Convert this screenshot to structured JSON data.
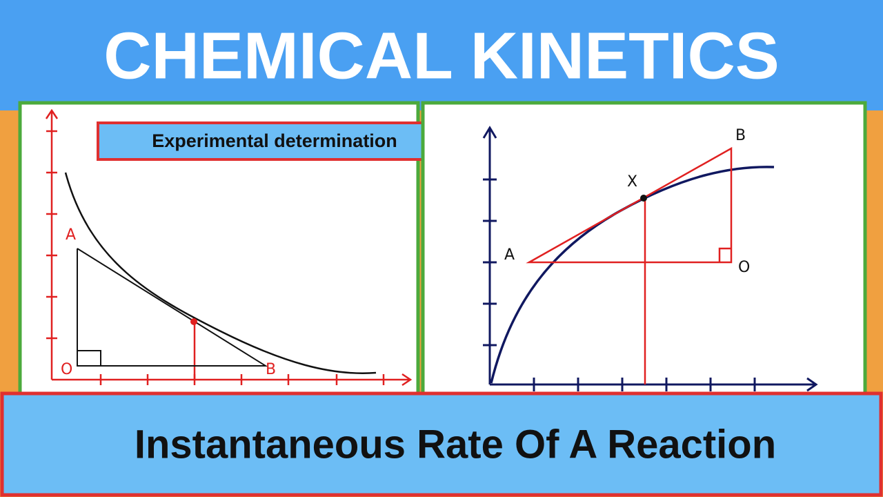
{
  "header": {
    "title": "CHEMICAL KINETICS"
  },
  "left_panel": {
    "label": "Experimental determination",
    "points": [
      "A",
      "O",
      "B"
    ]
  },
  "right_panel": {
    "points": [
      "A",
      "B",
      "X",
      "O"
    ]
  },
  "footer": {
    "title": "Instantaneous Rate Of A Reaction"
  }
}
